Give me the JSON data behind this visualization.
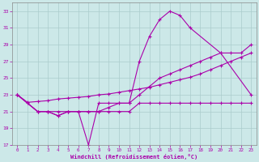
{
  "xlabel": "Windchill (Refroidissement éolien,°C)",
  "background_color": "#cce8e8",
  "line_color": "#aa00aa",
  "grid_color": "#aacccc",
  "xlim": [
    -0.5,
    23.5
  ],
  "ylim": [
    17,
    34
  ],
  "yticks": [
    17,
    19,
    21,
    23,
    25,
    27,
    29,
    31,
    33
  ],
  "xticks": [
    0,
    1,
    2,
    3,
    4,
    5,
    6,
    7,
    8,
    9,
    10,
    11,
    12,
    13,
    14,
    15,
    16,
    17,
    18,
    19,
    20,
    21,
    22,
    23
  ],
  "line1_x": [
    0,
    1,
    2,
    3,
    4,
    5,
    6,
    7,
    8,
    9,
    10,
    11,
    12,
    13,
    14,
    15,
    16,
    17,
    20,
    23
  ],
  "line1_y": [
    23,
    22,
    21,
    21,
    21,
    21,
    21,
    17,
    22,
    22,
    22,
    22,
    27,
    30,
    32,
    33,
    32.5,
    31,
    28,
    23
  ],
  "line2_x": [
    0,
    2,
    3,
    4,
    5,
    6,
    7,
    8,
    9,
    10,
    11,
    12,
    13,
    14,
    15,
    16,
    17,
    18,
    19,
    20,
    21,
    22,
    23
  ],
  "line2_y": [
    23,
    21,
    21,
    20.5,
    21,
    21,
    21,
    21,
    21,
    21,
    21,
    22,
    22,
    22,
    22,
    22,
    22,
    22,
    22,
    22,
    22,
    22,
    22
  ],
  "line3_x": [
    0,
    1,
    2,
    3,
    4,
    5,
    6,
    7,
    8,
    9,
    10,
    11,
    12,
    13,
    14,
    15,
    16,
    17,
    18,
    19,
    20,
    21,
    22,
    23
  ],
  "line3_y": [
    23,
    22.1,
    22.2,
    22.3,
    22.5,
    22.6,
    22.7,
    22.8,
    23,
    23.1,
    23.3,
    23.5,
    23.7,
    23.9,
    24.2,
    24.5,
    24.8,
    25.1,
    25.5,
    26,
    26.5,
    27,
    27.5,
    28
  ],
  "line4_x": [
    0,
    2,
    3,
    4,
    5,
    6,
    7,
    8,
    9,
    10,
    11,
    12,
    13,
    14,
    15,
    16,
    17,
    18,
    19,
    20,
    21,
    22,
    23
  ],
  "line4_y": [
    23,
    21,
    21,
    20.5,
    21,
    21,
    21,
    21,
    21.5,
    22,
    22,
    23,
    24,
    25,
    25.5,
    26,
    26.5,
    27,
    27.5,
    28,
    28,
    28,
    29
  ]
}
